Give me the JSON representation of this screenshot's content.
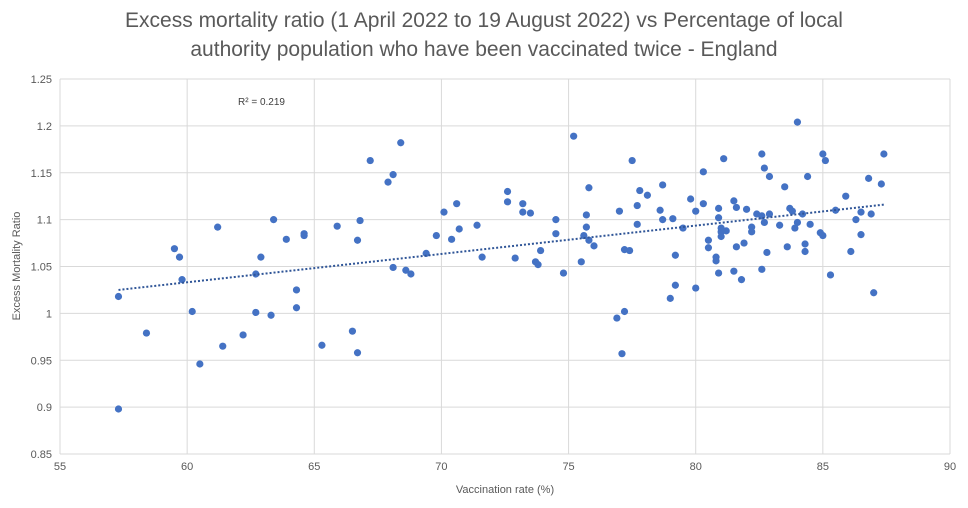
{
  "chart_data": {
    "type": "scatter",
    "title_line1": "Excess mortality ratio (1 April 2022 to 19 August 2022) vs Percentage of local",
    "title_line2": "authority population who have been vaccinated twice - England",
    "xlabel": "Vaccination rate (%)",
    "ylabel": "Excess Mortality Ratio",
    "xlim": [
      55,
      90
    ],
    "ylim": [
      0.85,
      1.25
    ],
    "x_ticks": [
      "55",
      "60",
      "65",
      "70",
      "75",
      "80",
      "85",
      "90"
    ],
    "y_ticks": [
      "0.85",
      "0.9",
      "0.95",
      "1",
      "1.05",
      "1.1",
      "1.15",
      "1.2",
      "1.25"
    ],
    "grid": true,
    "legend": "none",
    "marker_color": "#4472C4",
    "trendline": {
      "type": "linear",
      "color": "#2F5597",
      "style": "dotted",
      "r_squared_label": "R² = 0.219",
      "x_start": 57.3,
      "y_start": 1.025,
      "x_end": 87.4,
      "y_end": 1.116
    },
    "points": [
      [
        57.3,
        1.018
      ],
      [
        57.3,
        0.898
      ],
      [
        58.4,
        0.979
      ],
      [
        59.5,
        1.069
      ],
      [
        59.7,
        1.06
      ],
      [
        59.8,
        1.036
      ],
      [
        60.2,
        1.002
      ],
      [
        60.5,
        0.946
      ],
      [
        61.2,
        1.092
      ],
      [
        61.4,
        0.965
      ],
      [
        62.2,
        0.977
      ],
      [
        62.7,
        1.042
      ],
      [
        62.7,
        1.001
      ],
      [
        62.9,
        1.06
      ],
      [
        63.3,
        0.998
      ],
      [
        63.4,
        1.1
      ],
      [
        63.9,
        1.079
      ],
      [
        64.3,
        1.025
      ],
      [
        64.3,
        1.006
      ],
      [
        64.6,
        1.083
      ],
      [
        64.6,
        1.085
      ],
      [
        65.3,
        0.966
      ],
      [
        65.9,
        1.093
      ],
      [
        66.5,
        0.981
      ],
      [
        66.7,
        0.958
      ],
      [
        66.7,
        1.078
      ],
      [
        66.8,
        1.099
      ],
      [
        67.2,
        1.163
      ],
      [
        67.9,
        1.14
      ],
      [
        68.1,
        1.148
      ],
      [
        68.1,
        1.049
      ],
      [
        68.4,
        1.182
      ],
      [
        68.6,
        1.046
      ],
      [
        68.8,
        1.042
      ],
      [
        69.4,
        1.064
      ],
      [
        69.8,
        1.083
      ],
      [
        70.1,
        1.108
      ],
      [
        70.4,
        1.079
      ],
      [
        70.6,
        1.117
      ],
      [
        70.7,
        1.09
      ],
      [
        71.4,
        1.094
      ],
      [
        71.6,
        1.06
      ],
      [
        72.6,
        1.13
      ],
      [
        72.6,
        1.119
      ],
      [
        72.9,
        1.059
      ],
      [
        73.2,
        1.117
      ],
      [
        73.2,
        1.108
      ],
      [
        73.5,
        1.107
      ],
      [
        73.7,
        1.055
      ],
      [
        73.8,
        1.052
      ],
      [
        73.9,
        1.067
      ],
      [
        74.5,
        1.085
      ],
      [
        74.5,
        1.1
      ],
      [
        74.8,
        1.043
      ],
      [
        75.2,
        1.189
      ],
      [
        75.5,
        1.055
      ],
      [
        75.6,
        1.083
      ],
      [
        75.7,
        1.105
      ],
      [
        75.7,
        1.092
      ],
      [
        75.8,
        1.134
      ],
      [
        75.8,
        1.078
      ],
      [
        76.0,
        1.072
      ],
      [
        76.9,
        0.995
      ],
      [
        77.0,
        1.109
      ],
      [
        77.1,
        0.957
      ],
      [
        77.2,
        1.002
      ],
      [
        77.2,
        1.068
      ],
      [
        77.4,
        1.067
      ],
      [
        77.5,
        1.163
      ],
      [
        77.7,
        1.115
      ],
      [
        77.7,
        1.095
      ],
      [
        77.8,
        1.131
      ],
      [
        78.1,
        1.126
      ],
      [
        78.6,
        1.11
      ],
      [
        78.7,
        1.137
      ],
      [
        78.7,
        1.1
      ],
      [
        79.0,
        1.016
      ],
      [
        79.1,
        1.101
      ],
      [
        79.2,
        1.03
      ],
      [
        79.2,
        1.062
      ],
      [
        79.5,
        1.091
      ],
      [
        79.8,
        1.122
      ],
      [
        80.0,
        1.027
      ],
      [
        80.0,
        1.109
      ],
      [
        80.3,
        1.151
      ],
      [
        80.3,
        1.117
      ],
      [
        80.5,
        1.078
      ],
      [
        80.5,
        1.07
      ],
      [
        80.8,
        1.06
      ],
      [
        80.8,
        1.056
      ],
      [
        80.9,
        1.112
      ],
      [
        80.9,
        1.102
      ],
      [
        80.9,
        1.043
      ],
      [
        81.0,
        1.091
      ],
      [
        81.0,
        1.082
      ],
      [
        81.0,
        1.087
      ],
      [
        81.1,
        1.165
      ],
      [
        81.2,
        1.088
      ],
      [
        81.5,
        1.12
      ],
      [
        81.5,
        1.045
      ],
      [
        81.6,
        1.113
      ],
      [
        81.6,
        1.071
      ],
      [
        81.8,
        1.036
      ],
      [
        81.9,
        1.075
      ],
      [
        82.0,
        1.111
      ],
      [
        82.2,
        1.087
      ],
      [
        82.2,
        1.092
      ],
      [
        82.4,
        1.106
      ],
      [
        82.6,
        1.17
      ],
      [
        82.6,
        1.104
      ],
      [
        82.6,
        1.047
      ],
      [
        82.7,
        1.155
      ],
      [
        82.7,
        1.097
      ],
      [
        82.8,
        1.065
      ],
      [
        82.9,
        1.146
      ],
      [
        82.9,
        1.106
      ],
      [
        83.3,
        1.094
      ],
      [
        83.5,
        1.135
      ],
      [
        83.6,
        1.071
      ],
      [
        83.7,
        1.112
      ],
      [
        83.8,
        1.109
      ],
      [
        83.9,
        1.091
      ],
      [
        84.0,
        1.204
      ],
      [
        84.0,
        1.097
      ],
      [
        84.2,
        1.106
      ],
      [
        84.3,
        1.074
      ],
      [
        84.3,
        1.066
      ],
      [
        84.4,
        1.146
      ],
      [
        84.5,
        1.095
      ],
      [
        84.9,
        1.086
      ],
      [
        85.0,
        1.17
      ],
      [
        85.0,
        1.083
      ],
      [
        85.1,
        1.163
      ],
      [
        85.3,
        1.041
      ],
      [
        85.5,
        1.11
      ],
      [
        85.9,
        1.125
      ],
      [
        86.1,
        1.066
      ],
      [
        86.3,
        1.1
      ],
      [
        86.5,
        1.108
      ],
      [
        86.5,
        1.084
      ],
      [
        86.8,
        1.144
      ],
      [
        86.9,
        1.106
      ],
      [
        87.0,
        1.022
      ],
      [
        87.3,
        1.138
      ],
      [
        87.4,
        1.17
      ]
    ]
  }
}
